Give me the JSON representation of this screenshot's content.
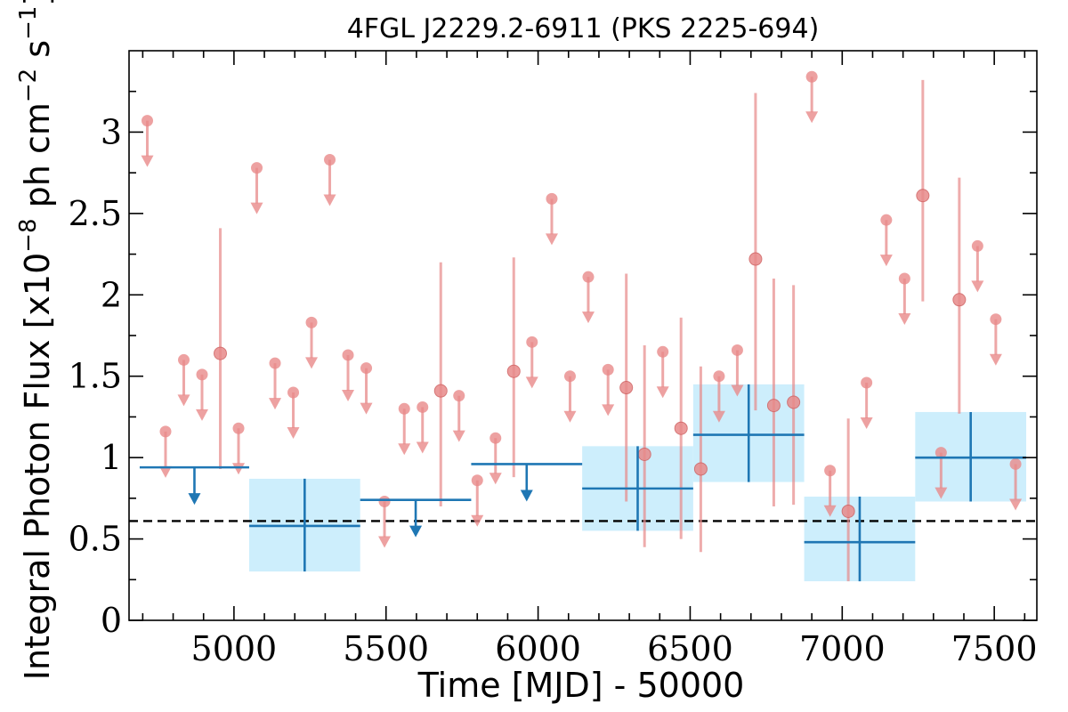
{
  "chart_data": {
    "type": "scatter",
    "title": "4FGL J2229.2-6911 (PKS 2225-694)",
    "xlabel": "Time [MJD] - 50000",
    "ylabel": "Integral Photon Flux [x10",
    "ylabel_exp1": "−8",
    "ylabel_mid": " ph cm",
    "ylabel_exp2": "−2",
    "ylabel_mid2": " s",
    "ylabel_exp3": "−1",
    "ylabel_end": "]",
    "xlim": [
      4655,
      7640
    ],
    "ylim": [
      0,
      3.5
    ],
    "xticks": [
      {
        "v": 5000,
        "label": "5000"
      },
      {
        "v": 5500,
        "label": "5500"
      },
      {
        "v": 6000,
        "label": "6000"
      },
      {
        "v": 6500,
        "label": "6500"
      },
      {
        "v": 7000,
        "label": "7000"
      },
      {
        "v": 7500,
        "label": "7500"
      }
    ],
    "yticks": [
      {
        "v": 0,
        "label": "0"
      },
      {
        "v": 0.5,
        "label": "0.5"
      },
      {
        "v": 1,
        "label": "1"
      },
      {
        "v": 1.5,
        "label": "1.5"
      },
      {
        "v": 2,
        "label": "2"
      },
      {
        "v": 2.5,
        "label": "2.5"
      },
      {
        "v": 3,
        "label": "3"
      }
    ],
    "reference_line": {
      "y": 0.61,
      "style": "dashed",
      "color": "#000000"
    },
    "colors": {
      "short_bins": "#e88a8a",
      "long_bins": "#1f77b4",
      "long_bin_box": "#cdeefc"
    },
    "short_bin_points": [
      {
        "x": 4715,
        "y": 3.07,
        "ul": true
      },
      {
        "x": 4775,
        "y": 1.16,
        "ul": true
      },
      {
        "x": 4835,
        "y": 1.6,
        "ul": true
      },
      {
        "x": 4895,
        "y": 1.51,
        "ul": true
      },
      {
        "x": 4955,
        "y": 1.64,
        "lo": 0.93,
        "hi": 2.41
      },
      {
        "x": 5015,
        "y": 1.18,
        "ul": true
      },
      {
        "x": 5075,
        "y": 2.78,
        "ul": true
      },
      {
        "x": 5135,
        "y": 1.58,
        "ul": true
      },
      {
        "x": 5195,
        "y": 1.4,
        "ul": true
      },
      {
        "x": 5255,
        "y": 1.83,
        "ul": true
      },
      {
        "x": 5315,
        "y": 2.83,
        "ul": true
      },
      {
        "x": 5375,
        "y": 1.63,
        "ul": true
      },
      {
        "x": 5435,
        "y": 1.55,
        "ul": true
      },
      {
        "x": 5495,
        "y": 0.73,
        "ul": true
      },
      {
        "x": 5560,
        "y": 1.3,
        "ul": true
      },
      {
        "x": 5620,
        "y": 1.31,
        "ul": true
      },
      {
        "x": 5680,
        "y": 1.41,
        "lo": 0.7,
        "hi": 2.2
      },
      {
        "x": 5740,
        "y": 1.38,
        "ul": true
      },
      {
        "x": 5800,
        "y": 0.86,
        "ul": true
      },
      {
        "x": 5860,
        "y": 1.12,
        "ul": true
      },
      {
        "x": 5920,
        "y": 1.53,
        "lo": 0.88,
        "hi": 2.23
      },
      {
        "x": 5980,
        "y": 1.71,
        "ul": true
      },
      {
        "x": 6045,
        "y": 2.59,
        "ul": true
      },
      {
        "x": 6105,
        "y": 1.5,
        "ul": true
      },
      {
        "x": 6165,
        "y": 2.11,
        "ul": true
      },
      {
        "x": 6230,
        "y": 1.54,
        "ul": true
      },
      {
        "x": 6290,
        "y": 1.43,
        "lo": 0.73,
        "hi": 2.13
      },
      {
        "x": 6350,
        "y": 1.02,
        "lo": 0.45,
        "hi": 1.69
      },
      {
        "x": 6410,
        "y": 1.65,
        "ul": true
      },
      {
        "x": 6470,
        "y": 1.18,
        "lo": 0.5,
        "hi": 1.86
      },
      {
        "x": 6535,
        "y": 0.93,
        "lo": 0.42,
        "hi": 1.56
      },
      {
        "x": 6595,
        "y": 1.5,
        "ul": true
      },
      {
        "x": 6655,
        "y": 1.66,
        "ul": true
      },
      {
        "x": 6715,
        "y": 2.22,
        "lo": 1.29,
        "hi": 3.24
      },
      {
        "x": 6775,
        "y": 1.32,
        "lo": 0.7,
        "hi": 2.1
      },
      {
        "x": 6840,
        "y": 1.34,
        "lo": 0.71,
        "hi": 2.06
      },
      {
        "x": 6900,
        "y": 3.34,
        "ul": true
      },
      {
        "x": 6960,
        "y": 0.92,
        "ul": true
      },
      {
        "x": 7020,
        "y": 0.67,
        "lo": 0.24,
        "hi": 1.24
      },
      {
        "x": 7080,
        "y": 1.46,
        "ul": true
      },
      {
        "x": 7145,
        "y": 2.46,
        "ul": true
      },
      {
        "x": 7205,
        "y": 2.1,
        "ul": true
      },
      {
        "x": 7265,
        "y": 2.61,
        "lo": 1.96,
        "hi": 3.32
      },
      {
        "x": 7325,
        "y": 1.03,
        "ul": true
      },
      {
        "x": 7385,
        "y": 1.97,
        "lo": 1.27,
        "hi": 2.72
      },
      {
        "x": 7445,
        "y": 2.3,
        "ul": true
      },
      {
        "x": 7505,
        "y": 1.85,
        "ul": true
      },
      {
        "x": 7570,
        "y": 0.96,
        "ul": true
      }
    ],
    "long_bins": [
      {
        "x0": 4690,
        "x1": 5050,
        "y": 0.94,
        "ul": true
      },
      {
        "x0": 5050,
        "x1": 5415,
        "y": 0.58,
        "lo": 0.3,
        "hi": 0.87
      },
      {
        "x0": 5415,
        "x1": 5780,
        "y": 0.74,
        "ul": true
      },
      {
        "x0": 5780,
        "x1": 6145,
        "y": 0.96,
        "ul": true
      },
      {
        "x0": 6145,
        "x1": 6510,
        "y": 0.81,
        "lo": 0.55,
        "hi": 1.07
      },
      {
        "x0": 6510,
        "x1": 6875,
        "y": 1.14,
        "lo": 0.85,
        "hi": 1.45
      },
      {
        "x0": 6875,
        "x1": 7240,
        "y": 0.48,
        "lo": 0.24,
        "hi": 0.76
      },
      {
        "x0": 7240,
        "x1": 7605,
        "y": 1.0,
        "lo": 0.73,
        "hi": 1.28
      }
    ]
  }
}
